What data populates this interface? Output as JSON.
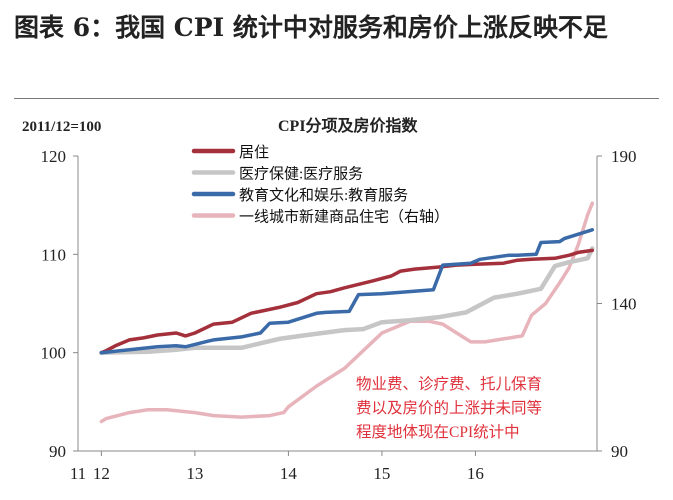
{
  "figure_title": "图表 6：我国 CPI 统计中对服务和房价上涨反映不足",
  "chart_data": {
    "type": "line",
    "title": "CPI分项及房价指数",
    "base_note": "2011/12=100",
    "x_ticks": [
      "11",
      "12",
      "13",
      "14",
      "15",
      "16"
    ],
    "y_left": {
      "ticks": [
        "90",
        "100",
        "110",
        "120"
      ],
      "range": [
        90,
        120
      ]
    },
    "y_right": {
      "ticks": [
        "90",
        "140",
        "190"
      ],
      "range": [
        90,
        190
      ]
    },
    "legend_position": "top-left",
    "annotation": [
      "物业费、诊疗费、托儿保育",
      "费以及房价的上涨并未同等",
      "程度地体现在CPI统计中"
    ],
    "series": [
      {
        "name": "居住",
        "axis": "left",
        "color": "#a3303a",
        "x": [
          2012.0,
          2012.05,
          2012.15,
          2012.3,
          2012.45,
          2012.6,
          2012.8,
          2012.9,
          2013.0,
          2013.2,
          2013.4,
          2013.6,
          2013.9,
          2014.1,
          2014.3,
          2014.45,
          2014.6,
          2014.9,
          2015.1,
          2015.2,
          2015.35,
          2015.6,
          2015.8,
          2016.0,
          2016.3,
          2016.45,
          2016.6,
          2016.85,
          2017.0,
          2017.1,
          2017.25
        ],
        "y": [
          100.0,
          100.2,
          100.7,
          101.3,
          101.5,
          101.8,
          102.0,
          101.7,
          102.0,
          102.9,
          103.1,
          104.0,
          104.6,
          105.1,
          106.0,
          106.2,
          106.6,
          107.3,
          107.8,
          108.3,
          108.5,
          108.7,
          108.9,
          109.0,
          109.1,
          109.4,
          109.5,
          109.6,
          109.9,
          110.2,
          110.4
        ]
      },
      {
        "name": "医疗保健:医疗服务",
        "axis": "left",
        "color": "#c6c6c6",
        "x": [
          2012.0,
          2012.5,
          2012.8,
          2013.0,
          2013.5,
          2013.9,
          2014.2,
          2014.6,
          2014.8,
          2015.0,
          2015.3,
          2015.6,
          2015.9,
          2016.2,
          2016.45,
          2016.7,
          2016.85,
          2017.0,
          2017.2,
          2017.25
        ],
        "y": [
          100.0,
          100.1,
          100.3,
          100.5,
          100.5,
          101.4,
          101.8,
          102.3,
          102.4,
          103.1,
          103.3,
          103.6,
          104.1,
          105.6,
          106.0,
          106.5,
          108.8,
          109.2,
          109.6,
          110.6
        ]
      },
      {
        "name": "教育文化和娱乐:教育服务",
        "axis": "left",
        "color": "#3b6aa8",
        "x": [
          2012.0,
          2012.3,
          2012.6,
          2012.8,
          2012.9,
          2013.15,
          2013.2,
          2013.5,
          2013.7,
          2013.8,
          2014.0,
          2014.3,
          2014.4,
          2014.65,
          2014.75,
          2015.0,
          2015.55,
          2015.65,
          2015.95,
          2016.05,
          2016.35,
          2016.45,
          2016.65,
          2016.7,
          2016.9,
          2016.95,
          2017.25
        ],
        "y": [
          100.0,
          100.3,
          100.6,
          100.7,
          100.6,
          101.2,
          101.3,
          101.6,
          102.0,
          103.0,
          103.1,
          104.0,
          104.1,
          104.2,
          105.9,
          106.0,
          106.4,
          108.9,
          109.1,
          109.5,
          109.9,
          109.9,
          110.0,
          111.2,
          111.3,
          111.6,
          112.5
        ]
      },
      {
        "name": "一线城市新建商品住宅（右轴）",
        "axis": "right",
        "color": "#e8b4bb",
        "x": [
          2012.0,
          2012.05,
          2012.3,
          2012.5,
          2012.7,
          2013.0,
          2013.2,
          2013.5,
          2013.8,
          2013.95,
          2014.0,
          2014.3,
          2014.6,
          2014.8,
          2015.0,
          2015.3,
          2015.5,
          2015.65,
          2015.8,
          2015.95,
          2016.1,
          2016.3,
          2016.5,
          2016.6,
          2016.75,
          2016.9,
          2017.0,
          2017.1,
          2017.2,
          2017.25
        ],
        "y": [
          100,
          101,
          103,
          104,
          104,
          103,
          102,
          101.5,
          102,
          103,
          105,
          112,
          118,
          124,
          130,
          134,
          134,
          133,
          130,
          127,
          127,
          128,
          129,
          136,
          140,
          147,
          152,
          160,
          170,
          174
        ]
      }
    ]
  }
}
